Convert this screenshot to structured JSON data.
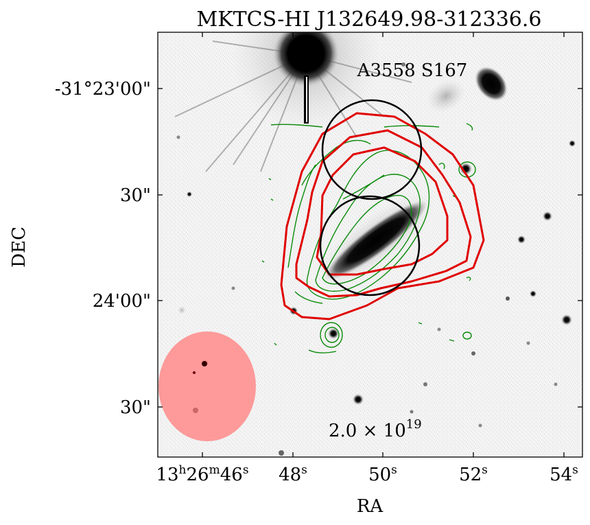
{
  "title": "MKTCS-HI J132649.98-312336.6",
  "annotations": {
    "galaxy_label": "A3558 S167",
    "contour_level_label": "2.0 × 10",
    "contour_level_exponent": "19"
  },
  "axes": {
    "xlabel": "RA",
    "ylabel": "DEC",
    "x_ticks": [
      {
        "h": "13",
        "m": "26",
        "s": "46",
        "label_type": "full"
      },
      {
        "s": "48",
        "label_type": "sec"
      },
      {
        "s": "50",
        "label_type": "sec"
      },
      {
        "s": "52",
        "label_type": "sec"
      },
      {
        "s": "54",
        "label_type": "sec"
      }
    ],
    "x_unit_glyphs": {
      "h": "h",
      "m": "m",
      "s": "s"
    },
    "y_ticks": [
      "-31°23'00\"",
      "30\"",
      "24'00\"",
      "30\""
    ]
  },
  "legend": {
    "beam_color": "#ff8a8a",
    "hi_contour_color": "#d00000",
    "optical_contour_color": "#0a8a0a",
    "aperture_color": "#000000"
  },
  "icons": {
    "beam": "beam-ellipse-icon"
  }
}
